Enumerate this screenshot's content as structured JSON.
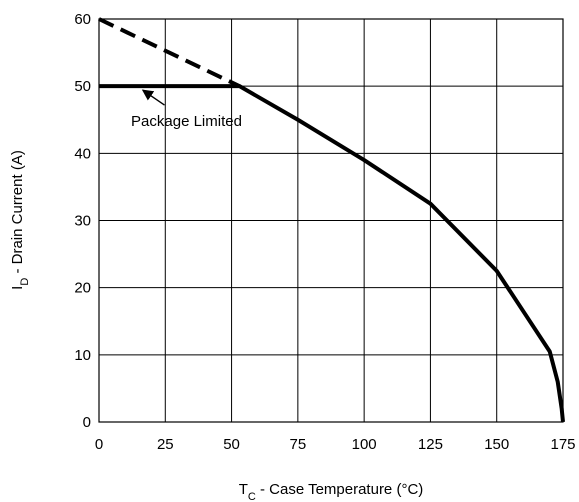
{
  "chart_data": {
    "type": "line",
    "xlabel": {
      "main": "T",
      "sub": "C",
      "rest": " - Case Temperature (°C)"
    },
    "ylabel": {
      "main": "I",
      "sub": "D",
      "rest": " - Drain Current (A)"
    },
    "xlim": [
      0,
      175
    ],
    "ylim": [
      0,
      60
    ],
    "x_ticks": [
      0,
      25,
      50,
      75,
      100,
      125,
      150,
      175
    ],
    "y_ticks": [
      0,
      10,
      20,
      30,
      40,
      50,
      60
    ],
    "grid": true,
    "series": [
      {
        "style": "dashed",
        "color": "#000000",
        "points": [
          [
            0,
            60
          ],
          [
            53,
            50
          ]
        ]
      },
      {
        "style": "solid",
        "color": "#000000",
        "points": [
          [
            0,
            50
          ],
          [
            53,
            50
          ],
          [
            75,
            45
          ],
          [
            100,
            39
          ],
          [
            125,
            32.5
          ],
          [
            150,
            22.5
          ],
          [
            160,
            16.5
          ],
          [
            170,
            10.5
          ],
          [
            173,
            6
          ],
          [
            174.5,
            2
          ],
          [
            175,
            0
          ]
        ]
      }
    ],
    "annotations": [
      {
        "text": "Package Limited",
        "x": 33,
        "y": 44.5,
        "arrow_to": [
          15,
          50
        ]
      }
    ]
  }
}
